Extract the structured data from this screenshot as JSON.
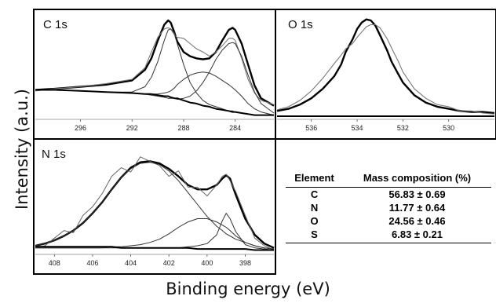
{
  "figure": {
    "ylabel": "Intensity (a.u.)",
    "xlabel": "Binding energy (eV)"
  },
  "chart_data": [
    {
      "type": "line",
      "title": "C 1s",
      "xlim": [
        299.5,
        281
      ],
      "ylim": [
        0,
        1
      ],
      "xticks": [
        296,
        292,
        288,
        284
      ],
      "x": [
        299.5,
        298,
        296,
        294,
        292,
        291,
        290.5,
        290,
        289.5,
        289.2,
        289,
        288.7,
        288.5,
        288,
        287.5,
        287,
        286.5,
        286,
        285.5,
        285,
        284.5,
        284.2,
        284,
        283.5,
        283,
        282.5,
        282,
        281
      ],
      "series": [
        {
          "values": [
            0.28,
            0.29,
            0.31,
            0.33,
            0.37,
            0.47,
            0.58,
            0.75,
            0.9,
            0.94,
            0.92,
            0.82,
            0.74,
            0.64,
            0.6,
            0.58,
            0.57,
            0.58,
            0.64,
            0.75,
            0.85,
            0.87,
            0.85,
            0.72,
            0.52,
            0.32,
            0.2,
            0.13
          ]
        },
        {
          "values": [
            0.27,
            0.29,
            0.31,
            0.34,
            0.38,
            0.49,
            0.64,
            0.78,
            0.86,
            0.87,
            0.86,
            0.8,
            0.78,
            0.77,
            0.72,
            0.67,
            0.64,
            0.6,
            0.64,
            0.7,
            0.77,
            0.77,
            0.75,
            0.58,
            0.38,
            0.25,
            0.18,
            0.14
          ]
        },
        {
          "values": [
            0.28,
            0.28,
            0.27,
            0.26,
            0.26,
            0.31,
            0.4,
            0.55,
            0.75,
            0.85,
            0.86,
            0.82,
            0.72,
            0.52,
            0.35,
            0.25,
            0.18,
            0.14,
            0.12,
            0.1,
            0.08,
            0.08,
            0.07,
            0.06,
            0.05,
            0.04,
            0.04,
            0.04
          ]
        },
        {
          "values": [
            0.28,
            0.28,
            0.27,
            0.26,
            0.25,
            0.24,
            0.24,
            0.24,
            0.25,
            0.26,
            0.27,
            0.3,
            0.33,
            0.38,
            0.42,
            0.44,
            0.45,
            0.44,
            0.41,
            0.37,
            0.33,
            0.3,
            0.28,
            0.22,
            0.15,
            0.1,
            0.07,
            0.04
          ]
        },
        {
          "values": [
            0.28,
            0.28,
            0.27,
            0.26,
            0.25,
            0.24,
            0.23,
            0.22,
            0.21,
            0.2,
            0.2,
            0.2,
            0.19,
            0.2,
            0.22,
            0.27,
            0.35,
            0.45,
            0.57,
            0.66,
            0.72,
            0.73,
            0.72,
            0.6,
            0.42,
            0.26,
            0.15,
            0.06
          ]
        },
        {
          "values": [
            0.28,
            0.28,
            0.27,
            0.26,
            0.25,
            0.24,
            0.24,
            0.23,
            0.22,
            0.22,
            0.21,
            0.2,
            0.2,
            0.18,
            0.16,
            0.15,
            0.13,
            0.12,
            0.1,
            0.09,
            0.08,
            0.07,
            0.07,
            0.06,
            0.05,
            0.04,
            0.04,
            0.04
          ]
        }
      ]
    },
    {
      "type": "line",
      "title": "O 1s",
      "xlim": [
        537.5,
        528
      ],
      "ylim": [
        0,
        1
      ],
      "xticks": [
        536,
        534,
        532,
        530
      ],
      "x": [
        537.5,
        537,
        536.5,
        536,
        535.5,
        535,
        534.7,
        534.5,
        534.2,
        534,
        533.8,
        533.6,
        533.4,
        533.2,
        533,
        532.7,
        532.5,
        532.2,
        532,
        531.5,
        531,
        530.5,
        530,
        529.5,
        529,
        528.5,
        528
      ],
      "series": [
        {
          "values": [
            0.08,
            0.1,
            0.14,
            0.2,
            0.29,
            0.41,
            0.52,
            0.64,
            0.76,
            0.86,
            0.92,
            0.95,
            0.94,
            0.89,
            0.8,
            0.66,
            0.55,
            0.43,
            0.35,
            0.23,
            0.16,
            0.12,
            0.1,
            0.08,
            0.07,
            0.07,
            0.06
          ]
        },
        {
          "values": [
            0.09,
            0.12,
            0.18,
            0.27,
            0.39,
            0.53,
            0.61,
            0.67,
            0.72,
            0.78,
            0.83,
            0.88,
            0.9,
            0.9,
            0.87,
            0.77,
            0.68,
            0.55,
            0.45,
            0.29,
            0.2,
            0.14,
            0.12,
            0.08,
            0.08,
            0.06,
            0.05
          ]
        },
        {
          "values": [
            0.03,
            0.03,
            0.03,
            0.03,
            0.03,
            0.03,
            0.03,
            0.03,
            0.03,
            0.03,
            0.03,
            0.03,
            0.03,
            0.03,
            0.03,
            0.03,
            0.03,
            0.03,
            0.03,
            0.03,
            0.03,
            0.03,
            0.03,
            0.03,
            0.03,
            0.03,
            0.03
          ]
        }
      ]
    },
    {
      "type": "line",
      "title": "N 1s",
      "xlim": [
        409,
        396.5
      ],
      "ylim": [
        0,
        1
      ],
      "xticks": [
        408,
        406,
        404,
        402,
        400,
        398
      ],
      "x": [
        409,
        408.5,
        408,
        407.5,
        407,
        406.5,
        406,
        405.5,
        405,
        404.5,
        404,
        403.5,
        403,
        402.5,
        402,
        401.5,
        401,
        400.5,
        400,
        399.5,
        399.2,
        399,
        398.8,
        398.5,
        398,
        397.5,
        397,
        396.5
      ],
      "series": [
        {
          "values": [
            0.08,
            0.1,
            0.13,
            0.17,
            0.22,
            0.29,
            0.38,
            0.48,
            0.6,
            0.71,
            0.8,
            0.85,
            0.86,
            0.84,
            0.79,
            0.72,
            0.64,
            0.6,
            0.6,
            0.64,
            0.7,
            0.73,
            0.7,
            0.55,
            0.33,
            0.18,
            0.1,
            0.06
          ]
        },
        {
          "values": [
            0.06,
            0.08,
            0.15,
            0.22,
            0.2,
            0.36,
            0.44,
            0.56,
            0.72,
            0.8,
            0.76,
            0.9,
            0.86,
            0.82,
            0.72,
            0.77,
            0.62,
            0.62,
            0.54,
            0.64,
            0.72,
            0.74,
            0.68,
            0.58,
            0.36,
            0.15,
            0.08,
            0.04
          ]
        },
        {
          "values": [
            0.08,
            0.1,
            0.13,
            0.17,
            0.22,
            0.29,
            0.38,
            0.48,
            0.6,
            0.71,
            0.79,
            0.84,
            0.85,
            0.83,
            0.77,
            0.68,
            0.57,
            0.46,
            0.35,
            0.26,
            0.22,
            0.19,
            0.17,
            0.14,
            0.11,
            0.08,
            0.06,
            0.05
          ]
        },
        {
          "values": [
            0.06,
            0.06,
            0.06,
            0.06,
            0.06,
            0.06,
            0.06,
            0.06,
            0.07,
            0.07,
            0.08,
            0.09,
            0.11,
            0.14,
            0.19,
            0.25,
            0.3,
            0.33,
            0.33,
            0.3,
            0.27,
            0.25,
            0.22,
            0.17,
            0.11,
            0.08,
            0.06,
            0.05
          ]
        },
        {
          "values": [
            0.06,
            0.06,
            0.06,
            0.06,
            0.06,
            0.06,
            0.06,
            0.06,
            0.06,
            0.06,
            0.06,
            0.06,
            0.06,
            0.06,
            0.06,
            0.06,
            0.07,
            0.08,
            0.1,
            0.18,
            0.31,
            0.38,
            0.33,
            0.21,
            0.09,
            0.06,
            0.05,
            0.04
          ]
        },
        {
          "values": [
            0.07,
            0.07,
            0.07,
            0.07,
            0.07,
            0.07,
            0.07,
            0.07,
            0.07,
            0.06,
            0.06,
            0.06,
            0.06,
            0.06,
            0.06,
            0.06,
            0.06,
            0.05,
            0.05,
            0.05,
            0.05,
            0.05,
            0.05,
            0.05,
            0.05,
            0.04,
            0.04,
            0.04
          ]
        }
      ]
    },
    {
      "type": "table",
      "columns": [
        "Element",
        "Mass composition (%)"
      ],
      "rows": [
        [
          "C",
          "56.83 ± 0.69"
        ],
        [
          "N",
          "11.77 ± 0.64"
        ],
        [
          "O",
          "24.56 ± 0.46"
        ],
        [
          "S",
          "6.83 ± 0.21"
        ]
      ]
    }
  ]
}
